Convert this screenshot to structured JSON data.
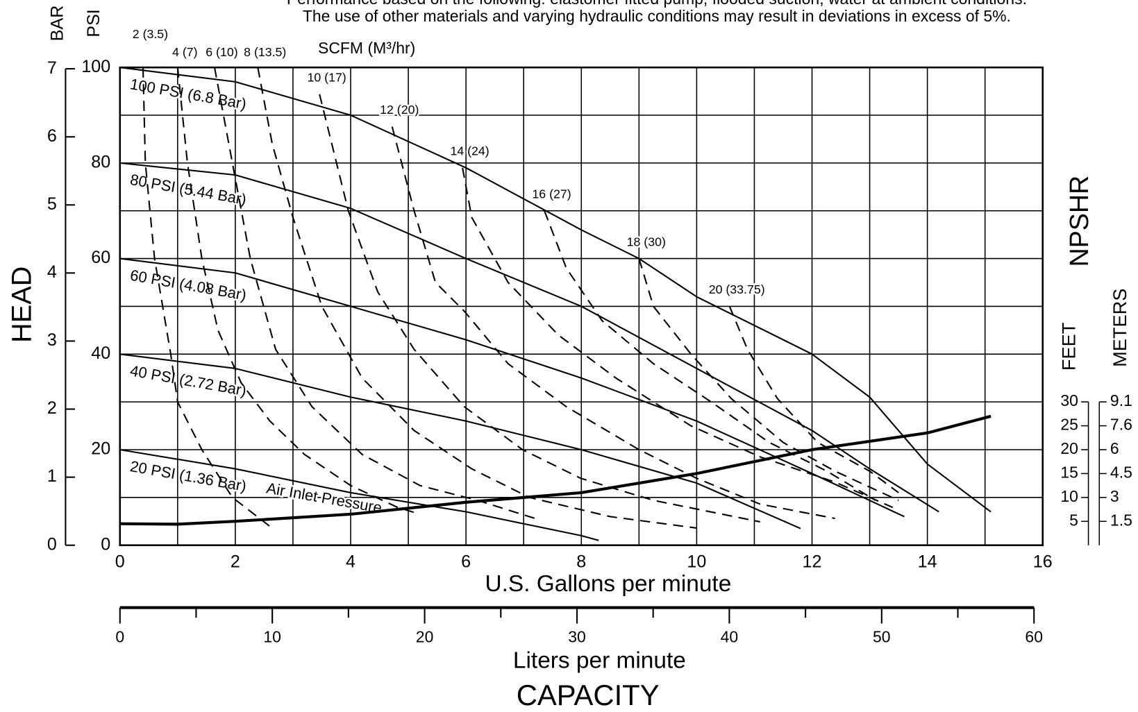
{
  "chart_data": {
    "type": "line",
    "notes": [
      "Performance based on the following: elastomer fitted pump, flooded suction, water at ambient conditions.",
      "The use of other materials and varying hydraulic conditions may result in deviations in excess of 5%."
    ],
    "ylabel": "PSI",
    "y3label": "BAR",
    "head_label": "HEAD",
    "air_label": "SCFM (M³/hr)",
    "xlabel": "U.S. Gallons per minute",
    "x2label": "Liters per minute",
    "capacity_label": "CAPACITY",
    "y2label": "NPSHR",
    "y2unit_feet": "FEET",
    "y2unit_meters": "METERS",
    "annotation": "Air Inlet Pressure",
    "xlim": [
      0,
      16
    ],
    "xticks": [
      0,
      2,
      4,
      6,
      8,
      10,
      12,
      14,
      16
    ],
    "xgrid": [
      1,
      3,
      5,
      7,
      9,
      11,
      13,
      15
    ],
    "ylim": [
      0,
      100
    ],
    "yticks": [
      0,
      20,
      40,
      60,
      80,
      100
    ],
    "ygrid": [
      10,
      30,
      50,
      70,
      90
    ],
    "y3lim": [
      0,
      7.02
    ],
    "y3ticks": [
      0,
      1,
      2,
      3,
      4,
      5,
      6,
      7
    ],
    "y2lim": [
      0,
      100
    ],
    "y2ticks": [
      5,
      10,
      15,
      20,
      25,
      30
    ],
    "y2_meter_labels": [
      "1.5",
      "3",
      "4.5",
      "6",
      "7.6",
      "9.1"
    ],
    "x2lim": [
      0,
      60
    ],
    "x2ticks": [
      0,
      10,
      20,
      30,
      40,
      50,
      60
    ],
    "x2minor": [
      5,
      15,
      25,
      35,
      45,
      55
    ],
    "grid": true,
    "series": [
      {
        "name": "100 PSI (6.8 Bar)",
        "color": "#000",
        "style": "solid",
        "x": [
          0,
          2,
          4,
          6,
          8,
          9,
          10,
          12,
          13,
          14,
          15.1
        ],
        "values": [
          100,
          97,
          90,
          79,
          66,
          60,
          52,
          40,
          31,
          17,
          7
        ]
      },
      {
        "name": "80 PSI (5.44 Bar)",
        "color": "#000",
        "style": "solid",
        "x": [
          0,
          2,
          4,
          6,
          8,
          10,
          12,
          13,
          14.2
        ],
        "values": [
          80,
          77.5,
          70.5,
          60,
          50,
          37,
          24,
          16,
          7
        ]
      },
      {
        "name": "60 PSI (4.08 Bar)",
        "color": "#000",
        "style": "solid",
        "x": [
          0,
          2,
          4,
          6,
          8,
          10,
          12,
          13.6
        ],
        "values": [
          60,
          57,
          50,
          43,
          35,
          26,
          15,
          6
        ]
      },
      {
        "name": "40 PSI (2.72 Bar)",
        "color": "#000",
        "style": "solid",
        "x": [
          0,
          2,
          4,
          6,
          8,
          10,
          11.8
        ],
        "values": [
          40,
          37,
          31,
          26,
          20,
          13,
          3.5
        ]
      },
      {
        "name": "20 PSI (1.36 Bar)",
        "color": "#000",
        "style": "solid",
        "x": [
          0,
          2,
          4,
          6,
          8,
          8.3
        ],
        "values": [
          20,
          16,
          11,
          7,
          2,
          1
        ]
      },
      {
        "name": "2 (3.5)",
        "color": "#000",
        "style": "dashed",
        "x": [
          0.4,
          0.44,
          0.6,
          0.88,
          1.0,
          1.42,
          1.95,
          2.67
        ],
        "values": [
          100,
          80,
          60,
          40,
          30,
          20,
          10,
          3.3
        ]
      },
      {
        "name": "4 (7)",
        "color": "#000",
        "style": "dashed",
        "x": [
          1.0,
          1.17,
          1.42,
          1.7,
          2.1,
          2.6,
          3.2,
          4.0,
          4.8,
          5.2
        ],
        "values": [
          100,
          80,
          60,
          45,
          34,
          26,
          19,
          12.5,
          8,
          6.5
        ]
      },
      {
        "name": "6 (10)",
        "color": "#000",
        "style": "dashed",
        "x": [
          1.64,
          1.95,
          2.26,
          2.7,
          3.33,
          4.2,
          5.2,
          6.2,
          7.2
        ],
        "values": [
          100,
          80,
          60,
          41,
          29,
          19,
          12.5,
          9.4,
          5.6
        ]
      },
      {
        "name": "8 (13.5)",
        "color": "#000",
        "style": "dashed",
        "x": [
          2.39,
          2.64,
          3.0,
          3.5,
          4.2,
          5.1,
          6.1,
          7.1,
          8.5,
          10.0
        ],
        "values": [
          100,
          84,
          68.6,
          50,
          35,
          24,
          16,
          10,
          6,
          3.6
        ]
      },
      {
        "name": "10 (17)",
        "color": "#000",
        "style": "dashed",
        "x": [
          3.46,
          3.96,
          4.47,
          5.1,
          5.97,
          6.98,
          7.99,
          9.25,
          11.1
        ],
        "values": [
          94.4,
          70,
          53,
          41,
          29,
          20,
          14,
          9.4,
          4.9
        ]
      },
      {
        "name": "12 (20)",
        "color": "#000",
        "style": "dashed",
        "x": [
          4.72,
          5.1,
          5.47,
          5.97,
          6.73,
          7.74,
          9.0,
          10.0,
          11.1,
          12.4
        ],
        "values": [
          87.6,
          70,
          55,
          49,
          38,
          29,
          20,
          14,
          8.6,
          5.6
        ]
      },
      {
        "name": "14 (24)",
        "color": "#000",
        "style": "dashed",
        "x": [
          5.94,
          6.1,
          6.73,
          7.6,
          8.6,
          9.9,
          11.1,
          12.4,
          13.4
        ],
        "values": [
          79,
          68.6,
          55,
          44,
          35,
          25,
          18.5,
          13.2,
          7.9
        ]
      },
      {
        "name": "16 (27)",
        "color": "#000",
        "style": "dashed",
        "x": [
          7.36,
          7.74,
          8.36,
          9.25,
          10.25,
          11.26,
          12.26,
          13.1
        ],
        "values": [
          70,
          58,
          47,
          38,
          30,
          21.5,
          15.5,
          9.4
        ]
      },
      {
        "name": "18 (30)",
        "color": "#000",
        "style": "dashed",
        "x": [
          9.0,
          9.25,
          9.9,
          10.6,
          11.5,
          12.4,
          13.5
        ],
        "values": [
          60,
          50,
          40,
          30.7,
          21.5,
          15.5,
          9.4
        ]
      },
      {
        "name": "20 (33.75)",
        "color": "#000",
        "style": "dashed",
        "x": [
          10.57,
          10.88,
          11.4,
          12.1,
          13.0,
          13.5
        ],
        "values": [
          50,
          41,
          30.7,
          21.5,
          15.5,
          11
        ]
      },
      {
        "color": "#000",
        "style": "thick",
        "axis": "y2",
        "x": [
          0,
          1,
          2,
          4,
          6,
          8,
          10,
          12,
          14,
          15.1
        ],
        "values": [
          4.5,
          4.4,
          5,
          6.5,
          9,
          11,
          15,
          20,
          23.5,
          27
        ]
      }
    ]
  }
}
